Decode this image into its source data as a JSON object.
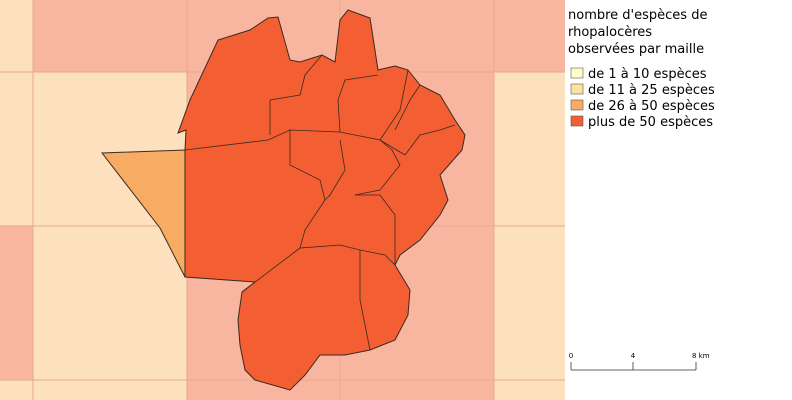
{
  "legend": {
    "title_lines": [
      "nombre d'espèces de",
      "rhopalocères",
      "observées par maille"
    ],
    "items": [
      {
        "label": "de 1 à 10 espèces",
        "color": "#fefec8"
      },
      {
        "label": "de 11 à 25 espèces",
        "color": "#fde3a0"
      },
      {
        "label": "de 26 à 50 espèces",
        "color": "#f8ab62"
      },
      {
        "label": "plus de 50 espèces",
        "color": "#f35f32"
      }
    ]
  },
  "scale_bar": {
    "labels": [
      "0",
      "4",
      "8 km"
    ]
  }
}
